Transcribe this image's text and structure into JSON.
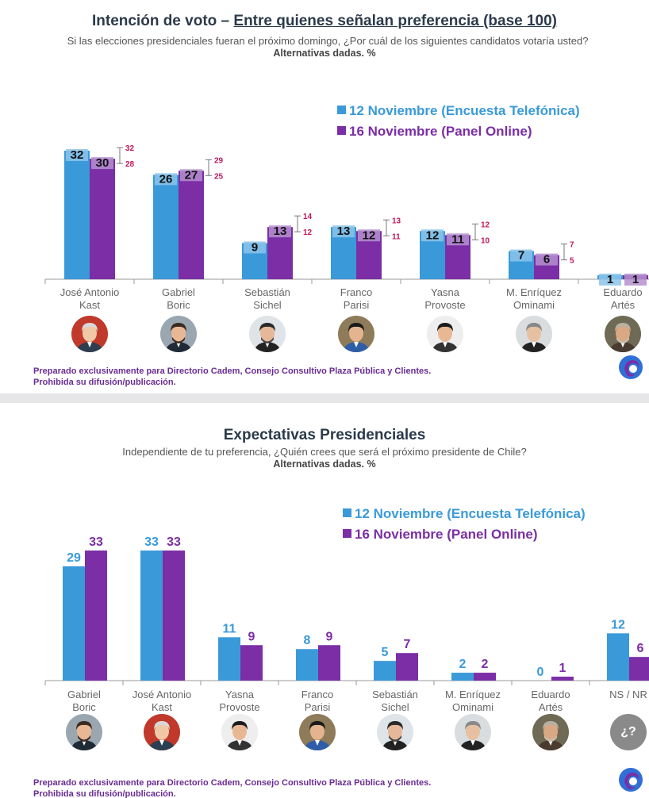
{
  "panel1": {
    "title_prefix": "Intención de voto – ",
    "title_underlined": "Entre quienes señalan preferencia (base 100)",
    "subtitle": "Si las elecciones presidenciales fueran el próximo domingo, ¿Por cuál de los siguientes candidatos votaría usted?",
    "alternatives": "Alternativas dadas. %",
    "legend": [
      "12 Noviembre (Encuesta Telefónica)",
      "16 Noviembre (Panel Online)"
    ],
    "footer": [
      "Preparado exclusivamente para Directorio Cadem, Consejo Consultivo Plaza Pública y Clientes.",
      "Prohibida su difusión/publicación."
    ]
  },
  "panel2": {
    "title": "Expectativas Presidenciales",
    "subtitle": "Independiente de tu preferencia, ¿Quién crees que será el próximo presidente de Chile?",
    "alternatives": "Alternativas dadas. %",
    "legend": [
      "12 Noviembre (Encuesta Telefónica)",
      "16 Noviembre (Panel Online)"
    ],
    "footer": [
      "Preparado exclusivamente para Directorio Cadem, Consejo Consultivo Plaza Pública y Clientes.",
      "Prohibida su difusión/publicación."
    ],
    "ns_avatar_text": "¿?"
  },
  "colors": {
    "blue": "#3a9ad9",
    "purple": "#7b2ea5",
    "error": "#c2185b",
    "title": "#2b3a4a"
  },
  "chart_data": [
    {
      "type": "bar",
      "title": "Intención de voto – Entre quienes señalan preferencia (base 100)",
      "categories": [
        [
          "José Antonio",
          "Kast"
        ],
        [
          "Gabriel",
          "Boric"
        ],
        [
          "Sebastián",
          "Sichel"
        ],
        [
          "Franco",
          "Parisi"
        ],
        [
          "Yasna",
          "Provoste"
        ],
        [
          "M. Enríquez",
          "Ominami"
        ],
        [
          "Eduardo",
          "Artés"
        ]
      ],
      "series": [
        {
          "name": "12 Noviembre (Encuesta Telefónica)",
          "values": [
            32,
            26,
            9,
            13,
            12,
            7,
            1
          ]
        },
        {
          "name": "16 Noviembre (Panel Online)",
          "values": [
            30,
            27,
            13,
            12,
            11,
            6,
            1
          ]
        }
      ],
      "error_range": [
        [
          28,
          32
        ],
        [
          25,
          29
        ],
        [
          12,
          14
        ],
        [
          11,
          13
        ],
        [
          10,
          12
        ],
        [
          5,
          7
        ],
        [
          null,
          null
        ]
      ],
      "ylim": [
        0,
        32
      ]
    },
    {
      "type": "bar",
      "title": "Expectativas Presidenciales",
      "categories": [
        [
          "Gabriel",
          "Boric"
        ],
        [
          "José Antonio",
          "Kast"
        ],
        [
          "Yasna",
          "Provoste"
        ],
        [
          "Franco",
          "Parisi"
        ],
        [
          "Sebastián",
          "Sichel"
        ],
        [
          "M. Enríquez",
          "Ominami"
        ],
        [
          "Eduardo",
          "Artés"
        ],
        [
          "NS / NR",
          ""
        ]
      ],
      "series": [
        {
          "name": "12 Noviembre (Encuesta Telefónica)",
          "values": [
            29,
            33,
            11,
            8,
            5,
            2,
            0,
            12
          ]
        },
        {
          "name": "16 Noviembre (Panel Online)",
          "values": [
            33,
            33,
            9,
            9,
            7,
            2,
            1,
            6
          ]
        }
      ],
      "ylim": [
        0,
        33
      ]
    }
  ]
}
